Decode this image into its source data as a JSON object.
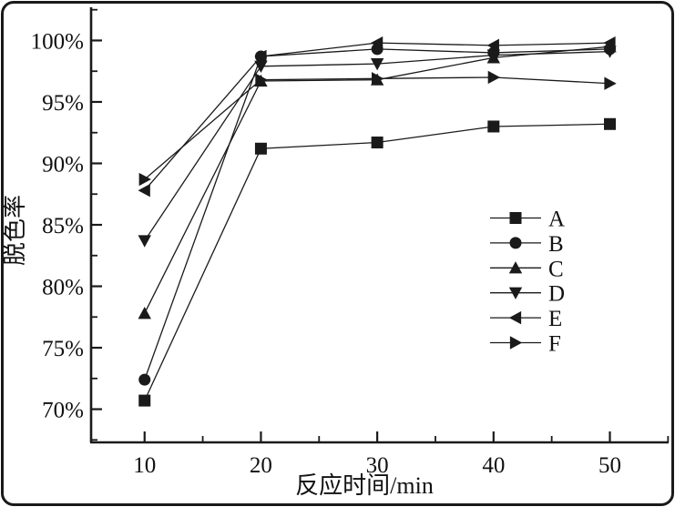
{
  "figure": {
    "background": "#ffffff",
    "frame_color": "#1a1a1a"
  },
  "chart_data": {
    "type": "line",
    "title": "",
    "xlabel": "反应时间/min",
    "ylabel": "脱色率",
    "x": [
      10,
      20,
      30,
      40,
      50
    ],
    "x_tick_labels": [
      "10",
      "20",
      "30",
      "40",
      "50"
    ],
    "x_minor_ticks": [
      15,
      25,
      35,
      45,
      55
    ],
    "y_tick_values": [
      70,
      75,
      80,
      85,
      90,
      95,
      100
    ],
    "y_tick_labels": [
      "70%",
      "75%",
      "80%",
      "85%",
      "90%",
      "95%",
      "100%"
    ],
    "y_minor_tick_values": [
      67.5,
      72.5,
      77.5,
      82.5,
      87.5,
      92.5,
      97.5,
      102.5
    ],
    "xlim": [
      5.4,
      55.05
    ],
    "ylim": [
      67.3,
      102.7
    ],
    "grid": false,
    "line_color": "#1a1a1a",
    "marker_color": "#1a1a1a",
    "legend_position": "center-right",
    "series": [
      {
        "name": "A",
        "marker": "square",
        "values": [
          70.7,
          91.2,
          91.7,
          93.0,
          93.2
        ]
      },
      {
        "name": "B",
        "marker": "circle",
        "values": [
          72.4,
          98.7,
          99.3,
          99.0,
          99.3
        ]
      },
      {
        "name": "C",
        "marker": "triangle-up",
        "values": [
          77.8,
          96.7,
          96.8,
          98.6,
          99.5
        ]
      },
      {
        "name": "D",
        "marker": "triangle-down",
        "values": [
          83.7,
          97.9,
          98.1,
          98.8,
          99.1
        ]
      },
      {
        "name": "E",
        "marker": "triangle-left",
        "values": [
          87.8,
          98.7,
          99.8,
          99.6,
          99.8
        ]
      },
      {
        "name": "F",
        "marker": "triangle-right",
        "values": [
          88.7,
          96.8,
          96.9,
          97.0,
          96.5
        ]
      }
    ]
  }
}
